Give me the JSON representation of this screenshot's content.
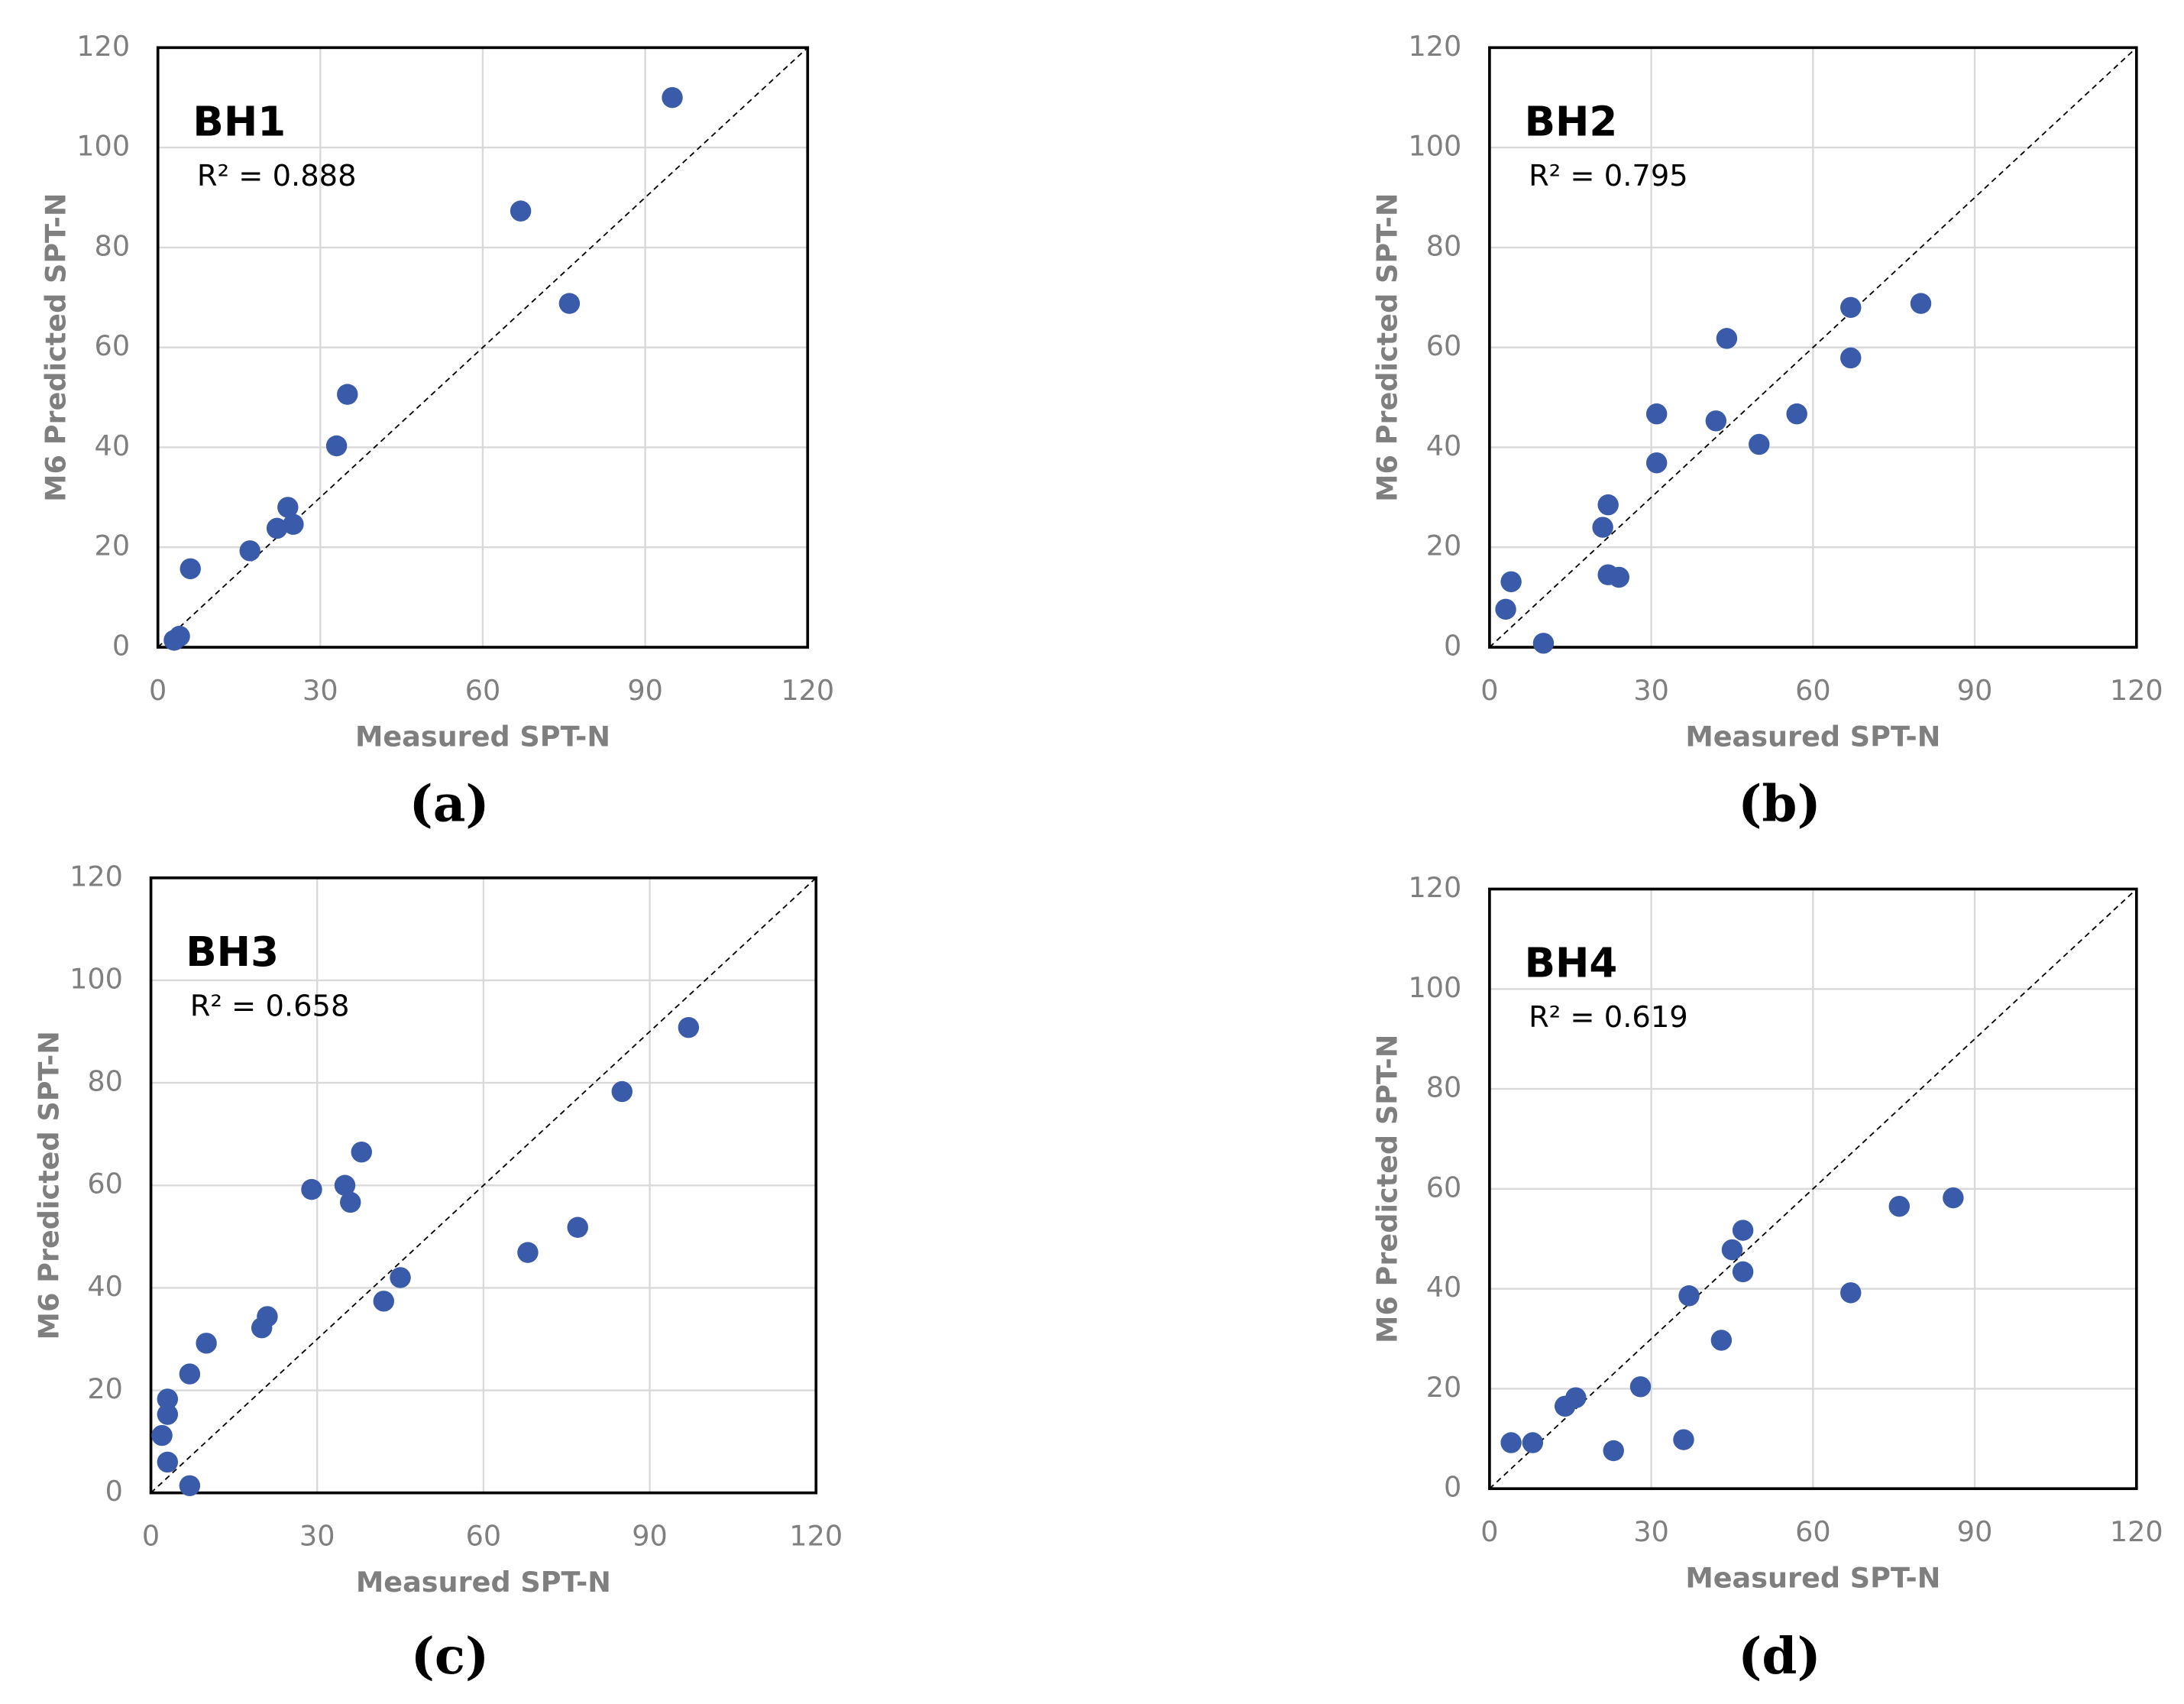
{
  "chart_data": [
    {
      "type": "scatter",
      "title": "BH1",
      "annotation": "R² = 0.888",
      "panel_label": "(a)",
      "xlabel": "Measured SPT-N",
      "ylabel": "M6 Predicted SPT-N",
      "color": "#3a5ba9",
      "grid": true,
      "x": [
        95,
        67,
        76,
        35,
        33,
        24,
        25,
        22,
        17,
        6,
        4,
        3
      ],
      "values": [
        110,
        87.3,
        68.8,
        50.6,
        40.3,
        28,
        24.6,
        23.8,
        19.3,
        15.7,
        2.2,
        1.4
      ],
      "xlim": [
        0,
        120
      ],
      "ylim": [
        0,
        120
      ],
      "xticks": [
        0,
        30,
        60,
        90,
        120
      ],
      "yticks": [
        0,
        20,
        40,
        60,
        80,
        100,
        120
      ]
    },
    {
      "type": "scatter",
      "title": "BH2",
      "annotation": "R² = 0.795",
      "panel_label": "(b)",
      "xlabel": "Measured SPT-N",
      "ylabel": "M6 Predicted SPT-N",
      "color": "#3a5ba9",
      "grid": true,
      "x": [
        80,
        67,
        67,
        44,
        57,
        50,
        42,
        31,
        31,
        22,
        21,
        22,
        24,
        4,
        3,
        10
      ],
      "values": [
        68.8,
        68,
        57.9,
        61.8,
        46.7,
        40.6,
        45.3,
        46.7,
        36.9,
        28.5,
        24,
        14.5,
        14,
        13.1,
        7.6,
        0.8
      ],
      "xlim": [
        0,
        120
      ],
      "ylim": [
        0,
        120
      ],
      "xticks": [
        0,
        30,
        60,
        90,
        120
      ],
      "yticks": [
        0,
        20,
        40,
        60,
        80,
        100,
        120
      ]
    },
    {
      "type": "scatter",
      "title": "BH3",
      "annotation": "R² = 0.658",
      "panel_label": "(c)",
      "xlabel": "Measured SPT-N",
      "ylabel": "M6 Predicted SPT-N",
      "color": "#3a5ba9",
      "grid": true,
      "x": [
        97,
        85,
        38,
        29,
        35,
        36,
        68,
        77,
        45,
        42,
        21,
        20,
        10,
        7,
        3,
        3,
        2,
        3,
        7
      ],
      "values": [
        90.8,
        78.3,
        66.5,
        59.2,
        60,
        56.7,
        46.9,
        51.8,
        42,
        37.4,
        34.4,
        32.2,
        29.2,
        23.2,
        18.3,
        15.3,
        11.2,
        6,
        1.4
      ],
      "xlim": [
        0,
        120
      ],
      "ylim": [
        0,
        120
      ],
      "xticks": [
        0,
        30,
        60,
        90,
        120
      ],
      "yticks": [
        0,
        20,
        40,
        60,
        80,
        100,
        120
      ]
    },
    {
      "type": "scatter",
      "title": "BH4",
      "annotation": "R² = 0.619",
      "panel_label": "(d)",
      "xlabel": "Measured SPT-N",
      "ylabel": "M6 Predicted SPT-N",
      "color": "#3a5ba9",
      "grid": true,
      "x": [
        86,
        76,
        67,
        47,
        45,
        47,
        43,
        37,
        28,
        36,
        23,
        16,
        14,
        4,
        8
      ],
      "values": [
        58.2,
        56.5,
        39.2,
        51.7,
        47.8,
        43.4,
        29.7,
        38.6,
        20.4,
        9.8,
        7.6,
        18.2,
        16.5,
        9.2,
        9.2
      ],
      "xlim": [
        0,
        120
      ],
      "ylim": [
        0,
        120
      ],
      "xticks": [
        0,
        30,
        60,
        90,
        120
      ],
      "yticks": [
        0,
        20,
        40,
        60,
        80,
        100,
        120
      ]
    }
  ]
}
